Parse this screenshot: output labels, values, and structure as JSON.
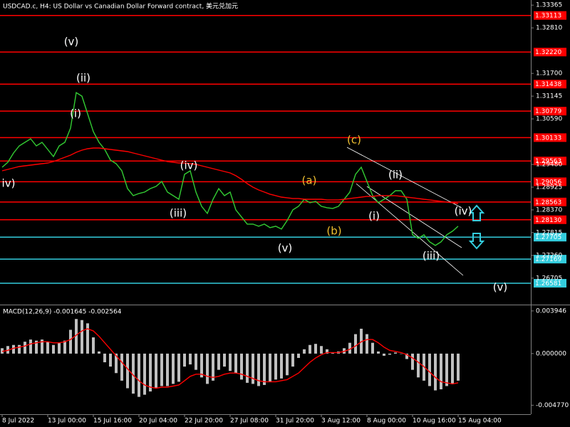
{
  "chart_data": {
    "type": "line",
    "title": "USDCAD.c, H4:  US Dollar vs Canadian Dollar Forward contract, 美元兑加元",
    "indicator_label": "MACD(12,26,9) -0.001645 -0.002564",
    "categories": [
      "8 Jul 2022",
      null,
      null,
      null,
      null,
      null,
      null,
      null,
      "13 Jul 00:00",
      null,
      null,
      null,
      null,
      null,
      null,
      null,
      "15 Jul 16:00",
      null,
      null,
      null,
      null,
      null,
      null,
      null,
      "20 Jul 04:00",
      null,
      null,
      null,
      null,
      null,
      null,
      null,
      "22 Jul 20:00",
      null,
      null,
      null,
      null,
      null,
      null,
      null,
      "27 Jul 08:00",
      null,
      null,
      null,
      null,
      null,
      null,
      null,
      "31 Jul 20:00",
      null,
      null,
      null,
      null,
      null,
      null,
      null,
      "3 Aug 12:00",
      null,
      null,
      null,
      null,
      null,
      null,
      null,
      "8 Aug 00:00",
      null,
      null,
      null,
      null,
      null,
      null,
      null,
      "10 Aug 16:00",
      null,
      null,
      null,
      null,
      null,
      null,
      null,
      "15 Aug 04:00"
    ],
    "series": [
      {
        "type": "line",
        "color": "#33cc33",
        "values": [
          1.29411,
          1.29532,
          1.29758,
          1.29931,
          1.30018,
          1.30104,
          1.29931,
          1.30018,
          1.29844,
          1.29671,
          1.29931,
          1.30018,
          1.30365,
          1.31232,
          1.31145,
          1.30712,
          1.30278,
          1.30018,
          1.29844,
          1.29584,
          1.29498,
          1.29324,
          1.2889,
          1.28717,
          1.28769,
          1.28804,
          1.2889,
          1.28943,
          1.29064,
          1.28804,
          1.28717,
          1.2863,
          1.29237,
          1.29324,
          1.28804,
          1.28457,
          1.28283,
          1.2863,
          1.2889,
          1.28717,
          1.28804,
          1.2837,
          1.28197,
          1.28023,
          1.28023,
          1.27971,
          1.28023,
          1.27937,
          1.27971,
          1.27902,
          1.2811,
          1.2837,
          1.28457,
          1.2863,
          1.28544,
          1.28578,
          1.28457,
          1.28422,
          1.28405,
          1.28457,
          1.2863,
          1.28804,
          1.29237,
          1.29411,
          1.29064,
          1.28717,
          1.28544,
          1.2863,
          1.28717,
          1.28838,
          1.28838,
          1.2863,
          1.27763,
          1.27676,
          1.27763,
          1.2759,
          1.27503,
          1.2759,
          1.27763,
          1.2785,
          1.27971
        ]
      },
      {
        "type": "line",
        "color": "#ff0000",
        "values": [
          1.29324,
          1.29359,
          1.29393,
          1.29428,
          1.29446,
          1.29463,
          1.2948,
          1.29498,
          1.29515,
          1.2955,
          1.29602,
          1.29654,
          1.29706,
          1.29775,
          1.29827,
          1.29862,
          1.29879,
          1.29879,
          1.29862,
          1.29844,
          1.29827,
          1.2981,
          1.29792,
          1.29758,
          1.29723,
          1.29688,
          1.29654,
          1.29619,
          1.29584,
          1.2955,
          1.29532,
          1.29515,
          1.29515,
          1.29498,
          1.2948,
          1.29446,
          1.29411,
          1.29376,
          1.29341,
          1.29307,
          1.29272,
          1.29203,
          1.29116,
          1.29012,
          1.28925,
          1.28856,
          1.28804,
          1.28752,
          1.28717,
          1.28682,
          1.28665,
          1.28648,
          1.28648,
          1.2863,
          1.2863,
          1.2863,
          1.2863,
          1.28613,
          1.28613,
          1.28613,
          1.2863,
          1.28648,
          1.28665,
          1.28682,
          1.287,
          1.287,
          1.28717,
          1.28717,
          1.28717,
          1.28717,
          1.287,
          1.28682,
          1.28665,
          1.28648,
          1.2863,
          1.28613,
          1.28596,
          1.28578,
          1.28561,
          1.28544,
          1.28526
        ]
      },
      {
        "type": "bar",
        "axis": "y2",
        "color": "#c0c0c0",
        "values": [
          0.0005,
          0.0007,
          0.0008,
          0.0008,
          0.0011,
          0.0013,
          0.0012,
          0.0013,
          0.0011,
          0.0008,
          0.001,
          0.0012,
          0.0022,
          0.0032,
          0.0031,
          0.0028,
          0.0015,
          0.0002,
          -0.0008,
          -0.0012,
          -0.0018,
          -0.0025,
          -0.0032,
          -0.0037,
          -0.004,
          -0.0038,
          -0.0035,
          -0.0032,
          -0.003,
          -0.003,
          -0.0028,
          -0.0026,
          -0.0012,
          -0.001,
          -0.0015,
          -0.0022,
          -0.0028,
          -0.0025,
          -0.0015,
          -0.0012,
          -0.0016,
          -0.0018,
          -0.0024,
          -0.0027,
          -0.0028,
          -0.003,
          -0.0029,
          -0.0026,
          -0.0024,
          -0.0023,
          -0.002,
          -0.0012,
          -0.0004,
          0.0004,
          0.0008,
          0.0009,
          0.0007,
          0.0004,
          0.0001,
          0.0002,
          0.0005,
          0.001,
          0.0018,
          0.0023,
          0.0018,
          0.001,
          0.0002,
          -0.0002,
          -0.0001,
          0.0001,
          0,
          -0.0005,
          -0.0015,
          -0.0022,
          -0.0025,
          -0.003,
          -0.0034,
          -0.0033,
          -0.003,
          -0.0028,
          -0.0025
        ]
      },
      {
        "type": "line",
        "axis": "y2",
        "color": "#ff0000",
        "values": [
          0.0002,
          0.0003,
          0.0005,
          0.0006,
          0.0007,
          0.0009,
          0.001,
          0.0011,
          0.0011,
          0.001,
          0.001,
          0.0011,
          0.0013,
          0.0017,
          0.0021,
          0.0023,
          0.0021,
          0.0016,
          0.001,
          0.0004,
          -0.0002,
          -0.0008,
          -0.0014,
          -0.002,
          -0.0025,
          -0.0029,
          -0.0031,
          -0.0032,
          -0.0031,
          -0.0031,
          -0.003,
          -0.0029,
          -0.0025,
          -0.0021,
          -0.0019,
          -0.0019,
          -0.0021,
          -0.0022,
          -0.0021,
          -0.0019,
          -0.0018,
          -0.0018,
          -0.0019,
          -0.0021,
          -0.0023,
          -0.0025,
          -0.0026,
          -0.0026,
          -0.0026,
          -0.0025,
          -0.0024,
          -0.0021,
          -0.0018,
          -0.0013,
          -0.0008,
          -0.0004,
          -0.0001,
          0.0001,
          0.0001,
          0.0001,
          0.0002,
          0.0004,
          0.0007,
          0.0011,
          0.0013,
          0.0013,
          0.001,
          0.0006,
          0.0003,
          0.0002,
          0.0001,
          -0.0001,
          -0.0004,
          -0.0008,
          -0.0012,
          -0.0017,
          -0.0022,
          -0.0026,
          -0.0027,
          -0.0028,
          -0.0027
        ]
      }
    ],
    "ylim": [
      1.2606,
      1.3349
    ],
    "yticks": [
      1.33365,
      {
        "value": 1.3281,
        "label": "1.32810"
      },
      {
        "value": 1.317,
        "label": "1.31700"
      },
      1.31145,
      {
        "value": 1.3059,
        "label": "1.30590"
      },
      {
        "value": 1.2948,
        "label": "1.29480"
      },
      1.28925,
      {
        "value": 1.2837,
        "label": "1.28370"
      },
      1.27815,
      {
        "value": 1.2726,
        "label": "1.27260"
      },
      1.26705
    ],
    "y2lim": [
      -0.0056,
      0.0044
    ],
    "y2ticks": [
      0.003946,
      {
        "value": 0,
        "label": "0.000000"
      },
      {
        "value": -0.00477,
        "label": "-0.004770"
      }
    ],
    "levels": [
      {
        "value": 1.33113,
        "label": "1.33113",
        "color": "#ff0000"
      },
      {
        "value": 1.3222,
        "label": "1.32220",
        "color": "#ff0000"
      },
      {
        "value": 1.31438,
        "label": "1.31438",
        "color": "#ff0000"
      },
      {
        "value": 1.30779,
        "label": "1.30779",
        "color": "#ff0000"
      },
      {
        "value": 1.30133,
        "label": "1.30133",
        "color": "#ff0000"
      },
      {
        "value": 1.29563,
        "label": "1.29563",
        "color": "#ff0000"
      },
      {
        "value": 1.29056,
        "label": "1.29056",
        "color": "#ff0000"
      },
      {
        "value": 1.28563,
        "label": "1.28563",
        "color": "#ff0000"
      },
      {
        "value": 1.2813,
        "label": "1.28130",
        "color": "#ff0000"
      },
      {
        "value": 1.27705,
        "label": "1.27705",
        "color": "#33ccdd"
      },
      {
        "value": 1.27169,
        "label": "1.27169",
        "color": "#33ccdd"
      },
      {
        "value": 1.26581,
        "label": "1.26581",
        "color": "#33ccdd"
      }
    ],
    "annotations": [
      {
        "text": "(v)",
        "color": "#ffffff"
      },
      {
        "text": "(ii)",
        "color": "#ffffff"
      },
      {
        "text": "(i)",
        "color": "#ffffff"
      },
      {
        "text": "iv)",
        "color": "#ffffff"
      },
      {
        "text": "(iv)",
        "color": "#ffffff"
      },
      {
        "text": "(iii)",
        "color": "#ffffff"
      },
      {
        "text": "(v)",
        "color": "#ffffff"
      },
      {
        "text": "(a)",
        "color": "#f0c030"
      },
      {
        "text": "(b)",
        "color": "#f0c030"
      },
      {
        "text": "(c)",
        "color": "#f0c030"
      },
      {
        "text": "(ii)",
        "color": "#ffffff"
      },
      {
        "text": "(i)",
        "color": "#ffffff"
      },
      {
        "text": "(iii)",
        "color": "#ffffff"
      },
      {
        "text": "(iv)",
        "color": "#ffffff"
      },
      {
        "text": "(v)",
        "color": "#ffffff"
      }
    ]
  }
}
